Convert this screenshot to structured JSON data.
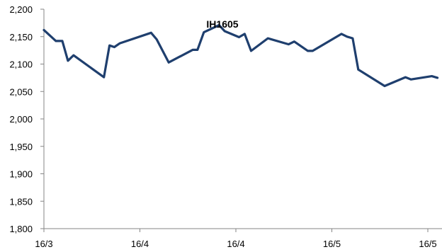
{
  "chart_data": {
    "type": "line",
    "title": "IH1605",
    "xlabel": "",
    "ylabel": "",
    "ylim": [
      1800,
      2200
    ],
    "y_ticks": [
      1800,
      1850,
      1900,
      1950,
      2000,
      2050,
      2100,
      2150,
      2200
    ],
    "y_tick_labels": [
      "1,800",
      "1,850",
      "1,900",
      "1,950",
      "2,000",
      "2,050",
      "2,100",
      "2,150",
      "2,200"
    ],
    "x_tick_labels": [
      "16/3",
      "16/4",
      "16/4",
      "16/5",
      "16/5"
    ],
    "x_index_range": [
      0,
      48
    ],
    "x_tick_index": [
      0,
      12,
      24,
      36,
      48
    ],
    "grid": false,
    "line_color": "#1F3F6E",
    "series": [
      {
        "values": [
          2162,
          2142,
          2142,
          2106,
          2116,
          2076,
          2134,
          2131,
          2138,
          2157,
          2145,
          2103,
          2126,
          2126,
          2158,
          2171,
          2160,
          2149,
          2155,
          2124,
          2147,
          2136,
          2141,
          2124,
          2124,
          2155,
          2150,
          2147,
          2090,
          2060,
          2076,
          2072,
          2078,
          2075
        ],
        "x": [
          0,
          1.5,
          2.3,
          3,
          3.7,
          7.5,
          8.2,
          8.8,
          9.5,
          13.4,
          14.1,
          15.6,
          18.6,
          19.2,
          20,
          21.9,
          22.6,
          24.4,
          25.1,
          25.9,
          28,
          30.6,
          31.3,
          33,
          33.6,
          37.2,
          37.9,
          38.6,
          39.3,
          42.6,
          45.2,
          45.9,
          48.5,
          49.2
        ]
      }
    ]
  }
}
